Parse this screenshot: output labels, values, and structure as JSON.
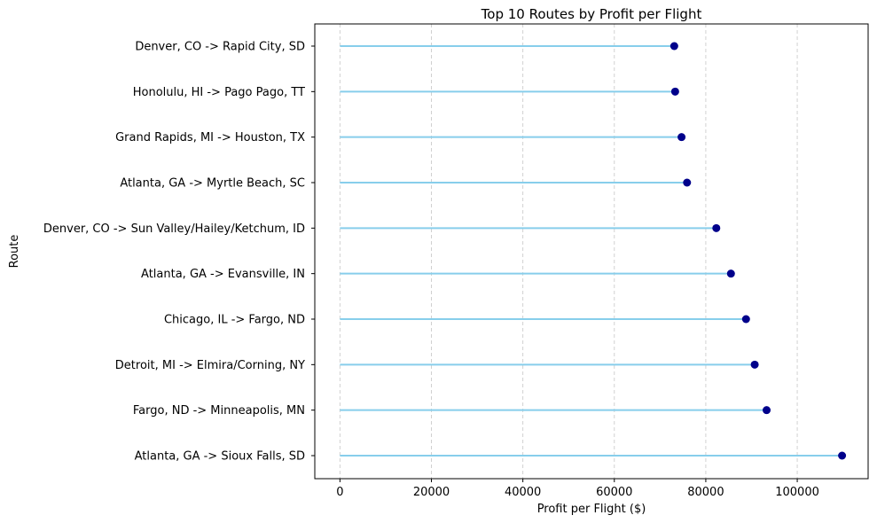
{
  "chart_data": {
    "type": "lollipop",
    "title": "Top 10 Routes by Profit per Flight",
    "xlabel": "Profit per Flight ($)",
    "ylabel": "Route",
    "xlim": [
      -5500,
      115500
    ],
    "xticks": [
      0,
      20000,
      40000,
      60000,
      80000,
      100000
    ],
    "xtick_labels": [
      "0",
      "20000",
      "40000",
      "60000",
      "80000",
      "100000"
    ],
    "grid": "vertical dashed",
    "stem_color": "#87CEEB",
    "marker_color": "#00008B",
    "categories": [
      "Denver, CO -> Rapid City, SD",
      "Honolulu, HI -> Pago Pago, TT",
      "Grand Rapids, MI -> Houston, TX",
      "Atlanta, GA -> Myrtle Beach, SC",
      "Denver, CO -> Sun Valley/Hailey/Ketchum, ID",
      "Atlanta, GA -> Evansville, IN",
      "Chicago, IL -> Fargo, ND",
      "Detroit, MI -> Elmira/Corning, NY",
      "Fargo, ND -> Minneapolis, MN",
      "Atlanta, GA -> Sioux Falls, SD"
    ],
    "values": [
      73100,
      73300,
      74700,
      75900,
      82300,
      85500,
      88800,
      90700,
      93300,
      109800
    ]
  }
}
